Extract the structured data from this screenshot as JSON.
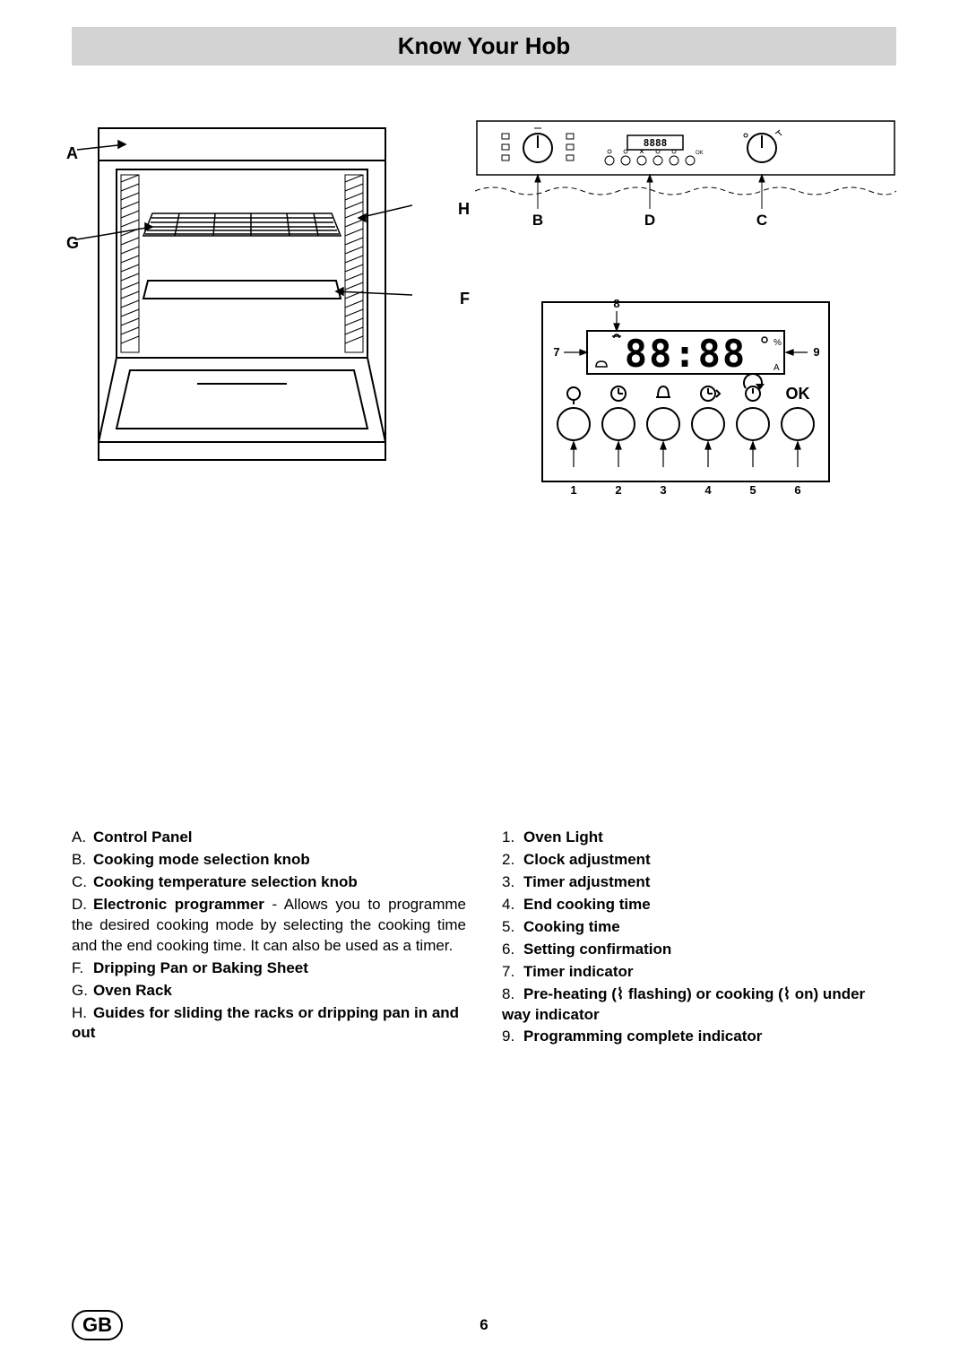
{
  "title": "Know Your Hob",
  "page_number": "6",
  "region_code": "GB",
  "oven_labels": {
    "A": "A",
    "G": "G",
    "H": "H",
    "F": "F"
  },
  "panel_labels": {
    "B": "B",
    "D": "D",
    "C": "C"
  },
  "programmer_labels": {
    "n1": "1",
    "n2": "2",
    "n3": "3",
    "n4": "4",
    "n5": "5",
    "n6": "6",
    "n7": "7",
    "n8": "8",
    "n9": "9",
    "ok": "OK",
    "auto": "A"
  },
  "display_text": "88:88",
  "panel_display": "8888",
  "panel_ok": "OK",
  "legend_left": [
    {
      "m": "A.",
      "b": "Control Panel",
      "rest": ""
    },
    {
      "m": "B.",
      "b": "Cooking mode selection knob",
      "rest": ""
    },
    {
      "m": "C.",
      "b": "Cooking temperature selection knob",
      "rest": ""
    },
    {
      "m": "D.",
      "b": "Electronic programmer",
      "rest": " - Allows you to programme the desired cooking mode by selecting the cooking time and the end cooking time. It can also be used as a timer."
    },
    {
      "m": "F.",
      "b": "Dripping Pan or Baking Sheet",
      "rest": ""
    },
    {
      "m": "G.",
      "b": "Oven Rack",
      "rest": ""
    },
    {
      "m": "H.",
      "b": "Guides for sliding the racks or dripping pan in and out",
      "rest": ""
    }
  ],
  "legend_right": [
    {
      "m": "1.",
      "b": "Oven Light",
      "rest": ""
    },
    {
      "m": "2.",
      "b": "Clock adjustment",
      "rest": ""
    },
    {
      "m": "3.",
      "b": "Timer adjustment",
      "rest": ""
    },
    {
      "m": "4.",
      "b": "End cooking time",
      "rest": ""
    },
    {
      "m": "5.",
      "b": "Cooking time",
      "rest": ""
    },
    {
      "m": "6.",
      "b": "Setting confirmation",
      "rest": ""
    },
    {
      "m": "7.",
      "b": "Timer indicator",
      "rest": ""
    },
    {
      "m": "8.",
      "b": "Pre-heating (⌇ flashing) or cooking (⌇ on) under way indicator",
      "rest": ""
    },
    {
      "m": "9.",
      "b": "Programming complete indicator",
      "rest": ""
    }
  ]
}
